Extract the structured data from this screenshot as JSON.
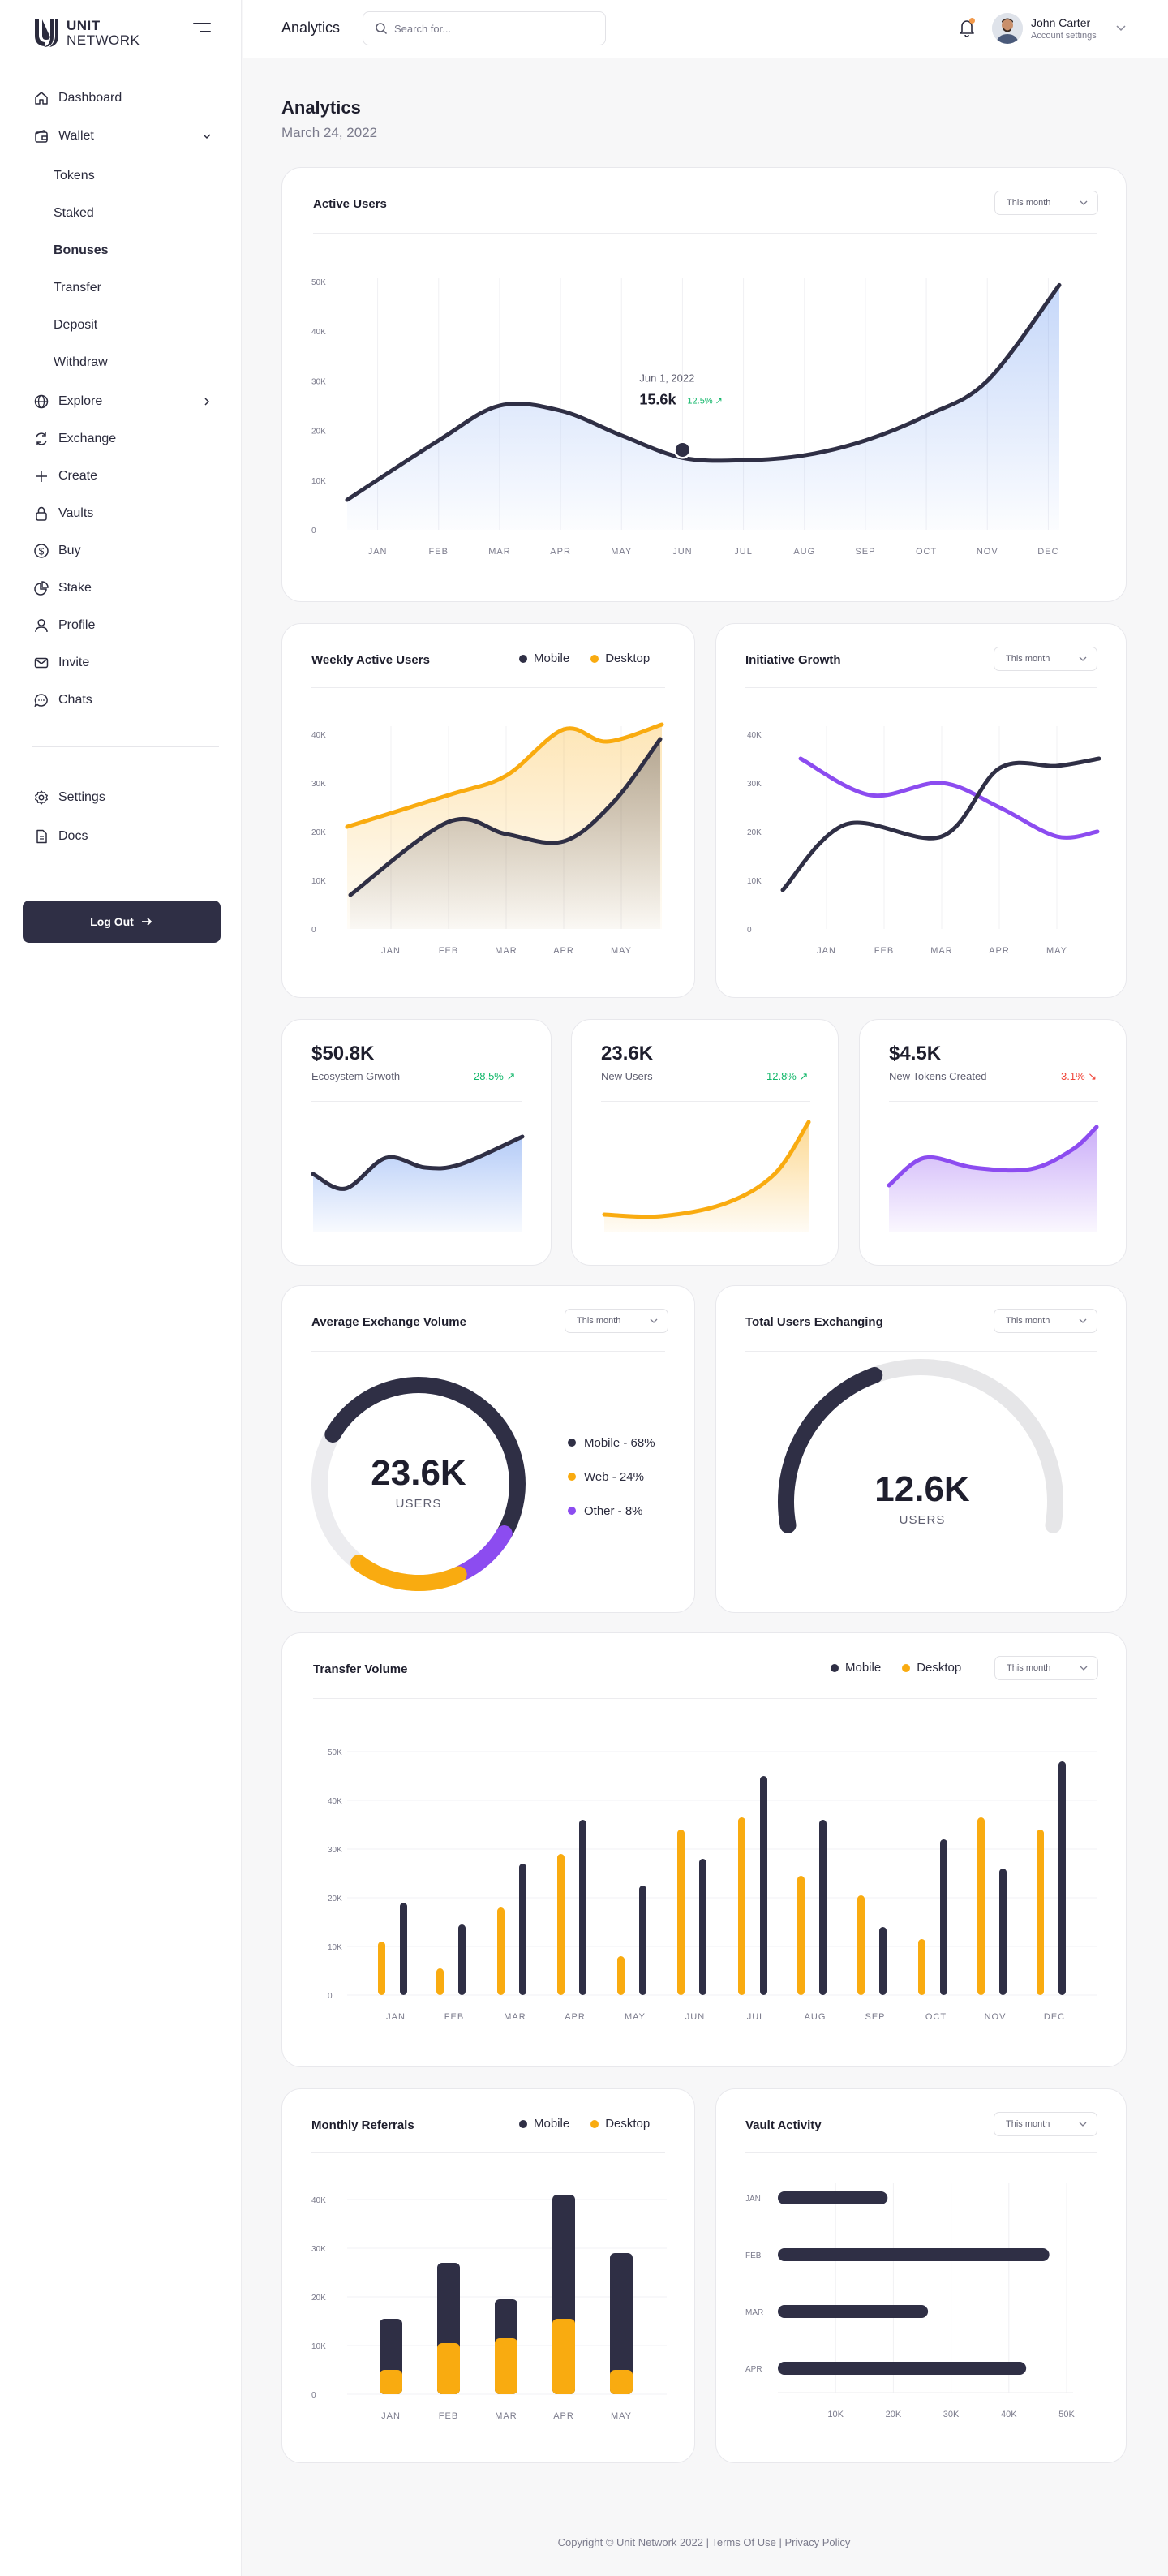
{
  "brand": {
    "name_line1": "UNIT",
    "name_line2": "NETWORK"
  },
  "sidebar": {
    "items": [
      {
        "label": "Dashboard",
        "icon": "home-icon"
      },
      {
        "label": "Wallet",
        "icon": "wallet-icon",
        "expanded": true
      },
      {
        "label": "Explore",
        "icon": "globe-icon"
      },
      {
        "label": "Exchange",
        "icon": "exchange-icon"
      },
      {
        "label": "Create",
        "icon": "plus-icon"
      },
      {
        "label": "Vaults",
        "icon": "lock-icon"
      },
      {
        "label": "Buy",
        "icon": "dollar-icon"
      },
      {
        "label": "Stake",
        "icon": "pie-icon"
      },
      {
        "label": "Profile",
        "icon": "user-icon"
      },
      {
        "label": "Invite",
        "icon": "mail-icon"
      },
      {
        "label": "Chats",
        "icon": "chat-icon"
      }
    ],
    "wallet_sub": [
      "Tokens",
      "Staked",
      "Bonuses",
      "Transfer",
      "Deposit",
      "Withdraw"
    ],
    "wallet_active": "Bonuses",
    "bottom": [
      {
        "label": "Settings",
        "icon": "gear-icon"
      },
      {
        "label": "Docs",
        "icon": "document-icon"
      }
    ],
    "logout_label": "Log Out"
  },
  "header": {
    "title": "Analytics",
    "search_placeholder": "Search for...",
    "user_name": "John Carter",
    "user_sub": "Account settings"
  },
  "page": {
    "title": "Analytics",
    "date": "March 24, 2022"
  },
  "colors": {
    "navy": "#2f2f45",
    "yellow": "#f9ab10",
    "purple": "#8c4cf0",
    "blue": "#5a8dee",
    "green": "#12b76a",
    "red": "#f04438"
  },
  "range_label": "This month",
  "legend": {
    "mobile": "Mobile",
    "desktop": "Desktop"
  },
  "active_users": {
    "title": "Active Users",
    "tooltip_date": "Jun 1, 2022",
    "tooltip_value": "15.6k",
    "tooltip_change": "12.5%"
  },
  "weekly": {
    "title": "Weekly Active Users"
  },
  "initiative": {
    "title": "Initiative Growth"
  },
  "stats": [
    {
      "value": "$50.8K",
      "label": "Ecosystem Grwoth",
      "change": "28.5%",
      "direction": "up"
    },
    {
      "value": "23.6K",
      "label": "New  Users",
      "change": "12.8%",
      "direction": "up"
    },
    {
      "value": "$4.5K",
      "label": "New Tokens Created",
      "change": "3.1%",
      "direction": "down"
    }
  ],
  "avg_exchange": {
    "title": "Average Exchange Volume",
    "value": "23.6K",
    "unit": "USERS",
    "legend": [
      "Mobile - 68%",
      "Web - 24%",
      "Other - 8%"
    ],
    "shares": [
      68,
      24,
      8
    ]
  },
  "total_exchanging": {
    "title": "Total Users Exchanging",
    "value": "12.6K",
    "unit": "USERS",
    "fraction": 0.3
  },
  "transfer": {
    "title": "Transfer Volume"
  },
  "referrals": {
    "title": "Monthly Referrals"
  },
  "vault": {
    "title": "Vault Activity"
  },
  "footer": {
    "copyright": "Copyright © Unit Network 2022",
    "sep": "|",
    "terms": "Terms Of Use",
    "privacy": "Privacy Policy"
  },
  "chart_data": [
    {
      "id": "active_users",
      "type": "area",
      "x": [
        "JAN",
        "FEB",
        "MAR",
        "APR",
        "MAY",
        "JUN",
        "JUL",
        "AUG",
        "SEP",
        "OCT",
        "NOV",
        "DEC"
      ],
      "yticks": [
        "0",
        "10K",
        "20K",
        "30K",
        "40K",
        "50K"
      ],
      "ylim": [
        0,
        50000
      ],
      "series": [
        {
          "values": [
            8000,
            18000,
            25000,
            24000,
            19000,
            14500,
            14000,
            15000,
            18000,
            23000,
            30000,
            47000
          ]
        }
      ],
      "highlight": {
        "x": "JUN",
        "value": 15600
      }
    },
    {
      "id": "weekly_active_users",
      "type": "area",
      "x": [
        "JAN",
        "FEB",
        "MAR",
        "APR",
        "MAY"
      ],
      "yticks": [
        "0",
        "10K",
        "20K",
        "30K",
        "40K"
      ],
      "ylim": [
        0,
        40000
      ],
      "series": [
        {
          "name": "Mobile",
          "values": [
            7000,
            22000,
            20000,
            18000,
            40000
          ]
        },
        {
          "name": "Desktop",
          "values": [
            21000,
            28000,
            32000,
            41000,
            42000
          ]
        }
      ]
    },
    {
      "id": "initiative_growth",
      "type": "line",
      "x": [
        "JAN",
        "FEB",
        "MAR",
        "APR",
        "MAY"
      ],
      "yticks": [
        "0",
        "10K",
        "20K",
        "30K",
        "40K"
      ],
      "ylim": [
        0,
        40000
      ],
      "series": [
        {
          "values": [
            8000,
            21000,
            19000,
            33000,
            35000
          ]
        },
        {
          "values": [
            35000,
            27000,
            30000,
            23000,
            20000
          ]
        }
      ]
    },
    {
      "id": "transfer_volume",
      "type": "bar",
      "categories": [
        "JAN",
        "FEB",
        "MAR",
        "APR",
        "MAY",
        "JUN",
        "JUL",
        "AUG",
        "SEP",
        "OCT",
        "NOV",
        "DEC"
      ],
      "yticks": [
        "0",
        "10K",
        "20K",
        "30K",
        "40K",
        "50K"
      ],
      "ylim": [
        0,
        50000
      ],
      "series": [
        {
          "name": "Desktop",
          "values": [
            11000,
            5500,
            18000,
            29000,
            8000,
            34000,
            36500,
            24500,
            20500,
            11500,
            36500,
            34000
          ]
        },
        {
          "name": "Mobile",
          "values": [
            19000,
            14500,
            27000,
            36000,
            22500,
            28000,
            45000,
            36000,
            14000,
            32000,
            26000,
            48000
          ]
        }
      ]
    },
    {
      "id": "monthly_referrals",
      "type": "bar",
      "stacked": true,
      "categories": [
        "JAN",
        "FEB",
        "MAR",
        "APR",
        "MAY"
      ],
      "yticks": [
        "0",
        "10K",
        "20K",
        "30K",
        "40K"
      ],
      "ylim": [
        0,
        40000
      ],
      "series": [
        {
          "name": "Desktop",
          "values": [
            5000,
            10500,
            11500,
            15500,
            5000
          ]
        },
        {
          "name": "Mobile",
          "values": [
            10500,
            16500,
            8000,
            25500,
            24000
          ]
        }
      ]
    },
    {
      "id": "vault_activity",
      "type": "bar",
      "orientation": "horizontal",
      "categories": [
        "JAN",
        "FEB",
        "MAR",
        "APR"
      ],
      "xticks": [
        "10K",
        "20K",
        "30K",
        "40K",
        "50K"
      ],
      "xlim": [
        0,
        50000
      ],
      "values": [
        19000,
        47000,
        26000,
        43000
      ]
    }
  ]
}
